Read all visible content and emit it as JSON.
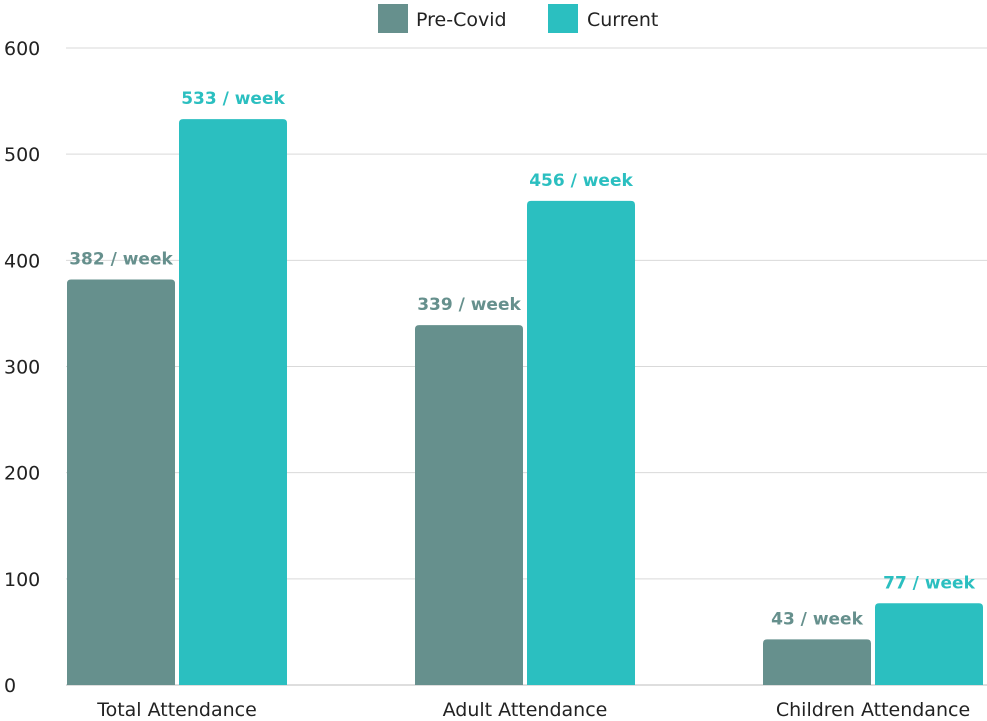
{
  "chart_data": {
    "type": "bar",
    "categories": [
      "Total Attendance",
      "Adult Attendance",
      "Children Attendance"
    ],
    "series": [
      {
        "name": "Pre-Covid",
        "values": [
          382,
          339,
          43
        ],
        "labels": [
          "382 / week",
          "339 / week",
          "43 / week"
        ],
        "color": "#66908d"
      },
      {
        "name": "Current",
        "values": [
          533,
          456,
          77
        ],
        "labels": [
          "533 / week",
          "456 / week",
          "77 / week"
        ],
        "color": "#2bbfc0"
      }
    ],
    "yticks": [
      "0",
      "100",
      "200",
      "300",
      "400",
      "500",
      "600"
    ],
    "ylim": [
      0,
      600
    ],
    "grid": true,
    "legend": "top-center"
  }
}
